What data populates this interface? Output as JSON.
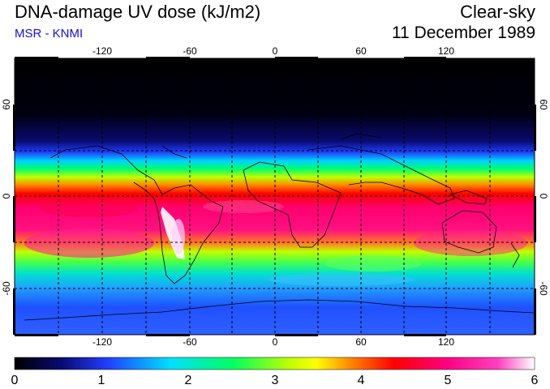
{
  "header": {
    "title": "DNA-damage UV dose (kJ/m2)",
    "source": "MSR - KNMI",
    "condition": "Clear-sky",
    "date": "11 December 1989"
  },
  "map": {
    "lon_ticks": [
      "-120",
      "-60",
      "0",
      "60",
      "120"
    ],
    "lat_ticks": [
      "60",
      "0",
      "-60"
    ]
  },
  "colorbar": {
    "min": 0,
    "max": 6,
    "labels": [
      "0",
      "1",
      "2",
      "3",
      "4",
      "5",
      "6"
    ],
    "colors": [
      "#000000",
      "#0a0a70",
      "#2040ff",
      "#00e0ff",
      "#00ff60",
      "#c0ff00",
      "#ffff00",
      "#ff8000",
      "#ff0000",
      "#ff0080",
      "#ff40c0",
      "#ffffff"
    ]
  },
  "colors": {
    "subtitle": "#1010e0",
    "grid": "#000000"
  }
}
